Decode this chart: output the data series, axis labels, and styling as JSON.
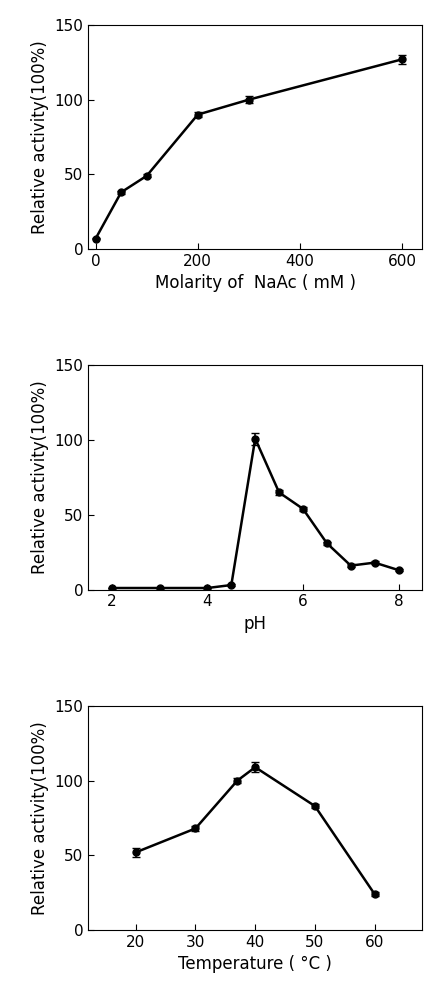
{
  "chart1": {
    "x": [
      0,
      50,
      100,
      200,
      300,
      600
    ],
    "y": [
      7,
      38,
      49,
      90,
      100,
      127
    ],
    "yerr": [
      0.5,
      1.0,
      1.0,
      1.5,
      2.5,
      3.0
    ],
    "xlabel": "Molarity of  NaAc ( mM )",
    "ylabel": "Relative activity(100%)",
    "ylim": [
      0,
      150
    ],
    "yticks": [
      0,
      50,
      100,
      150
    ],
    "xlim": [
      -15,
      640
    ],
    "xticks": [
      0,
      200,
      400,
      600
    ]
  },
  "chart2": {
    "x": [
      2,
      3,
      4,
      4.5,
      5,
      5.5,
      6,
      6.5,
      7,
      7.5,
      8
    ],
    "y": [
      1,
      1,
      1,
      3,
      101,
      65,
      54,
      31,
      16,
      18,
      13
    ],
    "yerr": [
      0.3,
      0.3,
      0.3,
      0.5,
      4.0,
      1.5,
      1.5,
      1.0,
      1.0,
      1.0,
      0.8
    ],
    "xlabel": "pH",
    "ylabel": "Relative activity(100%)",
    "ylim": [
      0,
      150
    ],
    "yticks": [
      0,
      50,
      100,
      150
    ],
    "xlim": [
      1.5,
      8.5
    ],
    "xticks": [
      2,
      4,
      6,
      8
    ]
  },
  "chart3": {
    "x": [
      20,
      30,
      37,
      40,
      50,
      60
    ],
    "y": [
      52,
      68,
      100,
      109,
      83,
      24
    ],
    "yerr": [
      3.0,
      1.5,
      1.5,
      3.5,
      1.5,
      1.5
    ],
    "xlabel": "Temperature (°C )",
    "ylabel": "Relative activity(100%)",
    "ylim": [
      0,
      150
    ],
    "yticks": [
      0,
      50,
      100,
      150
    ],
    "xlim": [
      12,
      68
    ],
    "xticks": [
      20,
      30,
      40,
      50,
      60
    ]
  },
  "line_color": "#000000",
  "marker": "o",
  "markersize": 5,
  "markerfacecolor": "#000000",
  "linewidth": 1.8,
  "capsize": 3,
  "elinewidth": 1.2,
  "tick_fontsize": 11,
  "label_fontsize": 12,
  "background_color": "#ffffff"
}
